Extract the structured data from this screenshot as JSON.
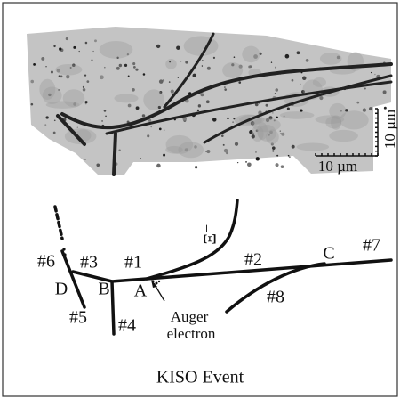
{
  "photo": {
    "scale_vertical": "10 µm",
    "scale_horizontal": "10 µm"
  },
  "diagram": {
    "xi_label": "Ξ⁻",
    "tracks": [
      "#6",
      "#3",
      "#1",
      "#2",
      "#7",
      "#8",
      "#5",
      "#4"
    ],
    "vertices": [
      "D",
      "B",
      "A",
      "C"
    ],
    "auger": [
      "Auger",
      "electron"
    ]
  },
  "caption": "KISO Event"
}
